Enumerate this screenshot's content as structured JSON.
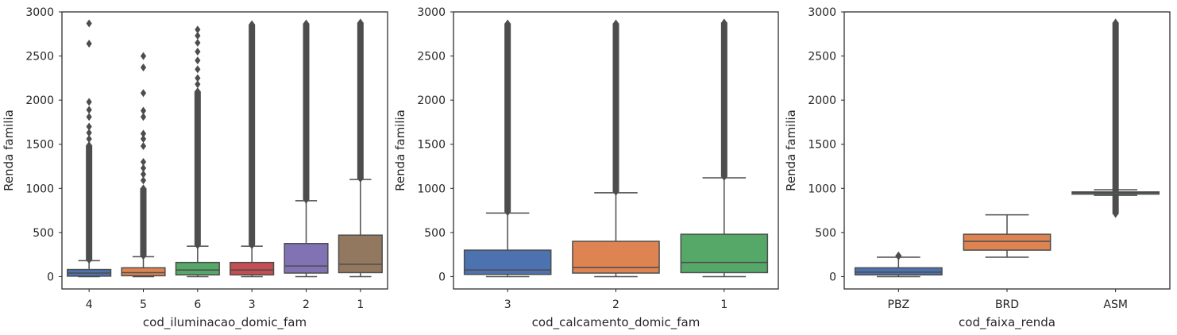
{
  "chart_data": [
    {
      "type": "box",
      "xlabel": "cod_iluminacao_domic_fam",
      "ylabel": "Renda familia",
      "ylim": [
        -140,
        3000
      ],
      "yticks": [
        0,
        500,
        1000,
        1500,
        2000,
        2500,
        3000
      ],
      "grid": false,
      "categories": [
        "4",
        "5",
        "6",
        "3",
        "2",
        "1"
      ],
      "colors": [
        "#4c72b0",
        "#dd8452",
        "#55a868",
        "#c44e52",
        "#8172b3",
        "#937860"
      ],
      "boxes": [
        {
          "category": "4",
          "whisker_low": 0,
          "q1": 5,
          "median": 40,
          "q3": 80,
          "whisker_high": 180,
          "outliers_dense": [
            190,
            1490
          ],
          "outliers": [
            1560,
            1630,
            1700,
            1810,
            1890,
            1980,
            2640,
            2870
          ]
        },
        {
          "category": "5",
          "whisker_low": 0,
          "q1": 10,
          "median": 45,
          "q3": 100,
          "whisker_high": 225,
          "outliers_dense": [
            235,
            1000
          ],
          "outliers": [
            1090,
            1160,
            1230,
            1300,
            1480,
            1560,
            1620,
            1810,
            1880,
            2080,
            2370,
            2500
          ]
        },
        {
          "category": "6",
          "whisker_low": 0,
          "q1": 20,
          "median": 75,
          "q3": 160,
          "whisker_high": 345,
          "outliers_dense": [
            355,
            2100
          ],
          "outliers": [
            2180,
            2250,
            2350,
            2450,
            2550,
            2650,
            2730,
            2800
          ]
        },
        {
          "category": "3",
          "whisker_low": 0,
          "q1": 20,
          "median": 75,
          "q3": 160,
          "whisker_high": 345,
          "outliers_dense": [
            355,
            2860
          ],
          "outliers": []
        },
        {
          "category": "2",
          "whisker_low": 0,
          "q1": 40,
          "median": 120,
          "q3": 375,
          "whisker_high": 860,
          "outliers_dense": [
            870,
            2870
          ],
          "outliers": []
        },
        {
          "category": "1",
          "whisker_low": 0,
          "q1": 45,
          "median": 140,
          "q3": 470,
          "whisker_high": 1100,
          "outliers_dense": [
            1110,
            2880
          ],
          "outliers": []
        }
      ]
    },
    {
      "type": "box",
      "xlabel": "cod_calcamento_domic_fam",
      "ylabel": "Renda familia",
      "ylim": [
        -140,
        3000
      ],
      "yticks": [
        0,
        500,
        1000,
        1500,
        2000,
        2500,
        3000
      ],
      "grid": false,
      "categories": [
        "3",
        "2",
        "1"
      ],
      "colors": [
        "#4c72b0",
        "#dd8452",
        "#55a868"
      ],
      "boxes": [
        {
          "category": "3",
          "whisker_low": 0,
          "q1": 25,
          "median": 75,
          "q3": 300,
          "whisker_high": 720,
          "outliers_dense": [
            730,
            2870
          ],
          "outliers": []
        },
        {
          "category": "2",
          "whisker_low": 0,
          "q1": 40,
          "median": 105,
          "q3": 400,
          "whisker_high": 950,
          "outliers_dense": [
            960,
            2870
          ],
          "outliers": []
        },
        {
          "category": "1",
          "whisker_low": 0,
          "q1": 45,
          "median": 160,
          "q3": 480,
          "whisker_high": 1120,
          "outliers_dense": [
            1130,
            2880
          ],
          "outliers": []
        }
      ]
    },
    {
      "type": "box",
      "xlabel": "cod_faixa_renda",
      "ylabel": "Renda familia",
      "ylim": [
        -140,
        3000
      ],
      "yticks": [
        0,
        500,
        1000,
        1500,
        2000,
        2500,
        3000
      ],
      "grid": false,
      "categories": [
        "PBZ",
        "BRD",
        "ASM"
      ],
      "colors": [
        "#4c72b0",
        "#dd8452",
        "#55a868"
      ],
      "boxes": [
        {
          "category": "PBZ",
          "whisker_low": 0,
          "q1": 20,
          "median": 50,
          "q3": 100,
          "whisker_high": 220,
          "outliers_dense": [
            230,
            240
          ],
          "outliers": []
        },
        {
          "category": "BRD",
          "whisker_low": 220,
          "q1": 300,
          "median": 400,
          "q3": 480,
          "whisker_high": 700,
          "outliers_dense": [],
          "outliers": []
        },
        {
          "category": "ASM",
          "whisker_low": 920,
          "q1": 935,
          "median": 950,
          "q3": 960,
          "whisker_high": 985,
          "outliers_dense": [
            710,
            2880
          ],
          "outliers": []
        }
      ]
    }
  ]
}
